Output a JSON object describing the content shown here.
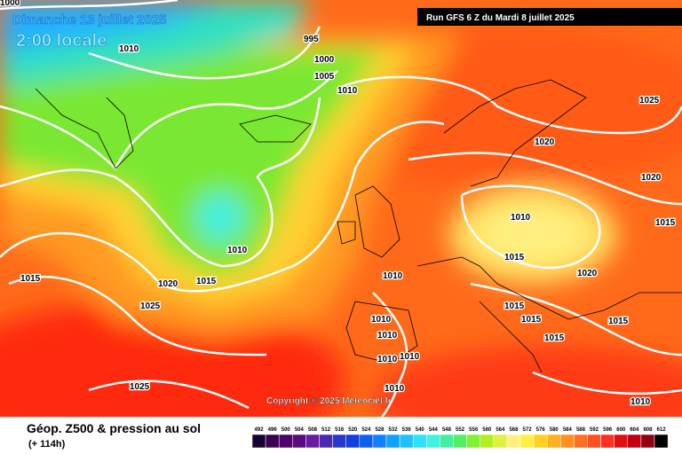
{
  "header": {
    "date": "Dimanche 13 juillet 2025",
    "time": "2:00 locale",
    "run": "Run GFS 6 Z du Mardi 8 juillet 2025"
  },
  "isobar_labels": [
    1000,
    1010,
    995,
    1000,
    1005,
    1010,
    1025,
    1020,
    1020,
    1010,
    1015,
    1010,
    1015,
    1020,
    1015,
    1020,
    1015,
    1010,
    1025,
    1015,
    1015,
    1010,
    1015,
    1010,
    1015,
    1010,
    1010,
    1025,
    1010,
    1010
  ],
  "copyright": "Copyright © 2025 Meteociel.fr",
  "legend": {
    "title": "Géop. Z500 & pression au sol",
    "lead": "(+ 114h)",
    "scale": [
      492,
      496,
      500,
      504,
      508,
      512,
      516,
      520,
      524,
      528,
      532,
      536,
      540,
      544,
      548,
      552,
      556,
      560,
      564,
      568,
      572,
      576,
      580,
      584,
      588,
      592,
      596,
      600,
      604,
      608,
      612
    ],
    "colors": [
      "#1a0030",
      "#3a0050",
      "#50006a",
      "#5a0a80",
      "#6a1aa0",
      "#4a2ab0",
      "#2a3ac8",
      "#1040e0",
      "#1060f0",
      "#1080ff",
      "#10a0ff",
      "#20c0ff",
      "#30e0ff",
      "#40f0e0",
      "#40f0a0",
      "#50f060",
      "#80f030",
      "#b0f020",
      "#e0f040",
      "#fff080",
      "#fff040",
      "#ffd020",
      "#ffb020",
      "#ff9020",
      "#ff7020",
      "#ff5020",
      "#ff3020",
      "#e01010",
      "#c00010",
      "#900010",
      "#000000"
    ]
  }
}
